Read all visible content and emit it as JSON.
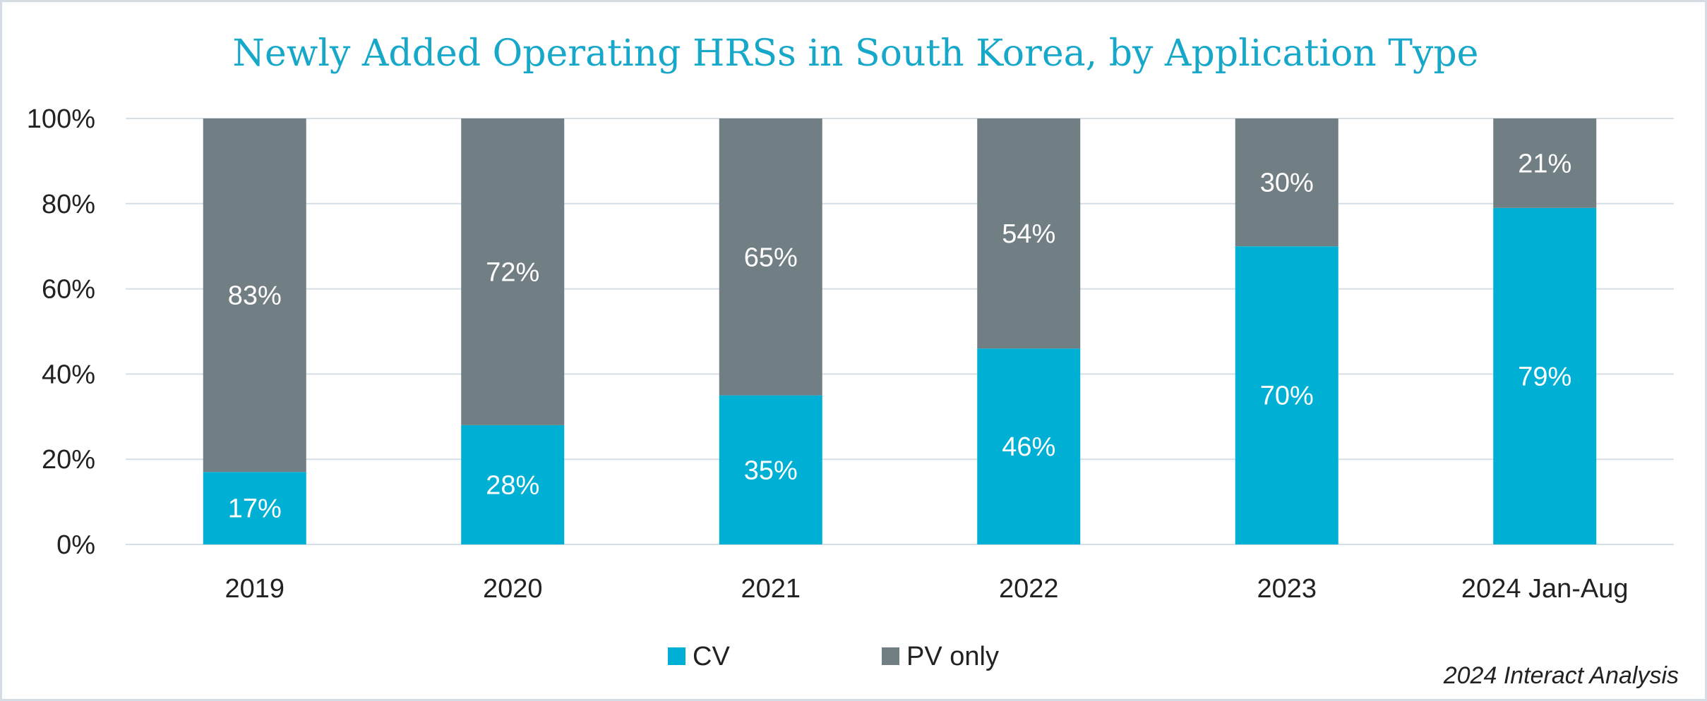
{
  "chart_data": {
    "type": "bar",
    "stacked": true,
    "title": "Newly Added Operating HRSs in South Korea, by Application Type",
    "categories": [
      "2019",
      "2020",
      "2021",
      "2022",
      "2023",
      "2024 Jan-Aug"
    ],
    "series": [
      {
        "name": "CV",
        "color": "#00b0d4",
        "values": [
          17,
          28,
          35,
          46,
          70,
          79
        ],
        "labels": [
          "17%",
          "28%",
          "35%",
          "46%",
          "70%",
          "79%"
        ]
      },
      {
        "name": "PV only",
        "color": "#717f85",
        "values": [
          83,
          72,
          65,
          54,
          30,
          21
        ],
        "labels": [
          "83%",
          "72%",
          "65%",
          "54%",
          "30%",
          "21%"
        ]
      }
    ],
    "ylim": [
      0,
      100
    ],
    "yticks": [
      "0%",
      "20%",
      "40%",
      "60%",
      "80%",
      "100%"
    ],
    "xlabel": "",
    "ylabel": "",
    "grid": true,
    "legend": "bottom-center",
    "source": "2024 Interact Analysis"
  }
}
